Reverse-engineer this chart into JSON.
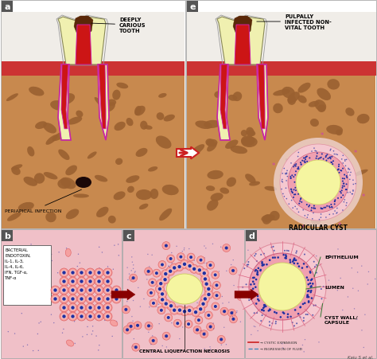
{
  "bg_color": "#f5f0e8",
  "skin_color": "#c8894e",
  "skin_dark": "#9a6030",
  "gum_color": "#cc3333",
  "tooth_enamel": "#f0f0b0",
  "tooth_outline": "#888855",
  "tooth_decay": "#5a2808",
  "pulp_color": "#cc1515",
  "root_outline": "#cc22aa",
  "periapical_dark": "#1a0808",
  "panel_border": "#aaaaaa",
  "pink_bg": "#f0c0c8",
  "cell_pink_light": "#f5b0b0",
  "cell_pink_dark": "#e08080",
  "cell_nucleus": "#2030a0",
  "lumen_color": "#f5f5a0",
  "cyst_outer": "#f5d0d8",
  "cyst_epi": "#f0a0b0",
  "white_color": "#ffffff",
  "off_white": "#f8f4ee",
  "title_panel_a": "a",
  "title_panel_e": "e",
  "title_panel_b": "b",
  "title_panel_c": "c",
  "title_panel_d": "d",
  "label_deeply_carious": "DEEPLY\nCARIOUS\nTOOTH",
  "label_pulpally": "PULPALLY\nINFECTED NON-\nVITAL TOOTH",
  "label_periapical": "PERIAPICAL INFECTION",
  "label_radicular": "RADICULAR CYST",
  "label_bacterial": "BACTERIAL\nENDOTOXIN,\nIL-1, IL-3,\nIL-4, IL-6,\nIFN, TGF-α,\nTNF-α",
  "label_central": "CENTRAL LIQUEFACTION NECROSIS",
  "label_epithelium": "EPITHELIUM",
  "label_lumen": "LUMEN",
  "label_cyst_wall": "CYST WALL/\nCAPSULE",
  "caption": "Kaju S et al."
}
